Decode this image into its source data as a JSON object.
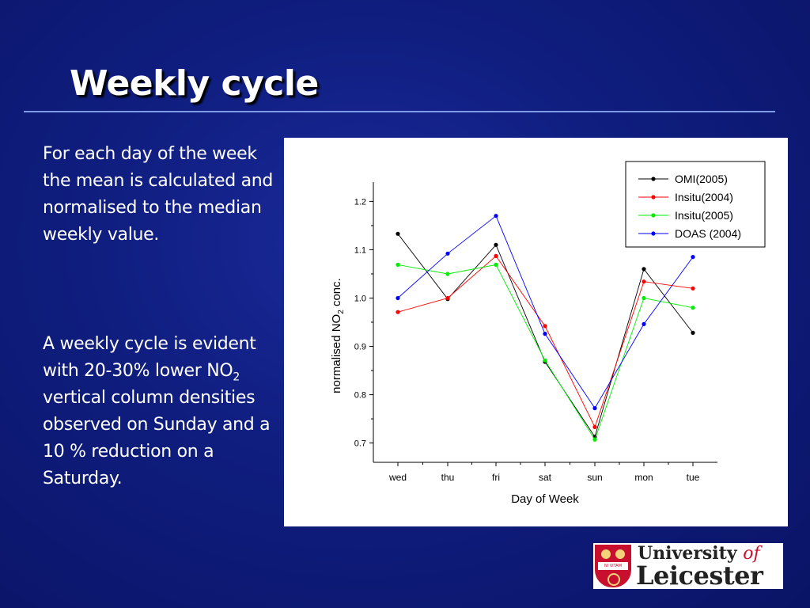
{
  "slide": {
    "title": "Weekly cycle",
    "para1": "For each day of the week the mean is calculated and normalised to the median weekly value.",
    "para2_before": "A weekly cycle is evident with 20-30% lower NO",
    "para2_sub": "2",
    "para2_after": " vertical column densities observed on Sunday and a 10 % reduction on a Saturday."
  },
  "logo": {
    "line1_a": "University ",
    "line1_b": "of",
    "line2": "Leicester",
    "band": "NI VITAM HABEANT"
  },
  "chart_data": {
    "type": "line",
    "categories": [
      "wed",
      "thu",
      "fri",
      "sat",
      "sun",
      "mon",
      "tue"
    ],
    "xlabel": "Day of Week",
    "ylabel_main": "normalised NO",
    "ylabel_sub": "2",
    "ylabel_tail": " conc.",
    "ylim": [
      0.66,
      1.24
    ],
    "yticks": [
      "0.7",
      "0.8",
      "0.9",
      "1.0",
      "1.1",
      "1.2"
    ],
    "legend_position": "top-right",
    "series": [
      {
        "name": "OMI(2005)",
        "color": "#000000",
        "values": [
          1.133,
          0.998,
          1.11,
          0.868,
          0.713,
          1.06,
          0.928
        ]
      },
      {
        "name": "Insitu(2004)",
        "color": "#ff0000",
        "values": [
          0.971,
          1.0,
          1.087,
          0.942,
          0.733,
          1.034,
          1.02
        ]
      },
      {
        "name": "Insitu(2005)",
        "color": "#00ee00",
        "values": [
          1.069,
          1.05,
          1.069,
          0.871,
          0.707,
          1.0,
          0.98
        ]
      },
      {
        "name": "DOAS (2004)",
        "color": "#0000ff",
        "values": [
          1.0,
          1.092,
          1.17,
          0.926,
          0.772,
          0.946,
          1.085
        ]
      }
    ]
  }
}
